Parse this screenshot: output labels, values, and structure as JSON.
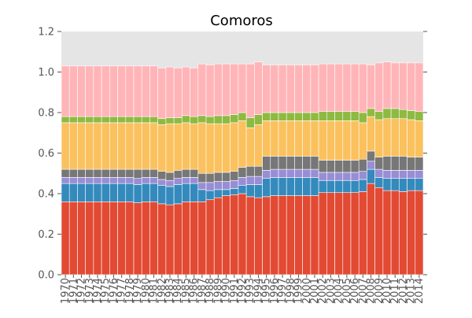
{
  "chart_data": {
    "type": "bar",
    "stacked": true,
    "title": "Comoros",
    "xlabel": "",
    "ylabel": "",
    "ylim": [
      0,
      1.2
    ],
    "yticks": [
      "0.0",
      "0.2",
      "0.4",
      "0.6",
      "0.8",
      "1.0",
      "1.2"
    ],
    "grid": false,
    "legend": "none",
    "categories": [
      "1970",
      "1971",
      "1972",
      "1973",
      "1974",
      "1975",
      "1976",
      "1977",
      "1978",
      "1979",
      "1980",
      "1981",
      "1982",
      "1983",
      "1984",
      "1985",
      "1986",
      "1987",
      "1988",
      "1989",
      "1990",
      "1991",
      "1992",
      "1993",
      "1994",
      "1995",
      "1996",
      "1997",
      "1998",
      "1999",
      "2000",
      "2001",
      "2002",
      "2003",
      "2004",
      "2005",
      "2006",
      "2007",
      "2008",
      "2009",
      "2010",
      "2011",
      "2012",
      "2013",
      "2014"
    ],
    "series": [
      {
        "color": "#E24A33",
        "values": [
          0.36,
          0.36,
          0.36,
          0.36,
          0.36,
          0.36,
          0.36,
          0.36,
          0.36,
          0.355,
          0.36,
          0.36,
          0.35,
          0.345,
          0.35,
          0.36,
          0.36,
          0.36,
          0.37,
          0.38,
          0.39,
          0.395,
          0.4,
          0.385,
          0.38,
          0.385,
          0.39,
          0.39,
          0.39,
          0.39,
          0.39,
          0.39,
          0.405,
          0.405,
          0.405,
          0.405,
          0.405,
          0.41,
          0.45,
          0.43,
          0.415,
          0.415,
          0.41,
          0.415,
          0.415
        ]
      },
      {
        "color": "#348ABD",
        "values": [
          0.09,
          0.09,
          0.09,
          0.09,
          0.09,
          0.09,
          0.09,
          0.09,
          0.09,
          0.09,
          0.09,
          0.09,
          0.09,
          0.09,
          0.095,
          0.09,
          0.09,
          0.06,
          0.045,
          0.04,
          0.03,
          0.03,
          0.04,
          0.06,
          0.065,
          0.09,
          0.09,
          0.09,
          0.09,
          0.09,
          0.09,
          0.09,
          0.06,
          0.06,
          0.06,
          0.06,
          0.06,
          0.06,
          0.07,
          0.05,
          0.06,
          0.06,
          0.065,
          0.06,
          0.06
        ]
      },
      {
        "color": "#988ED5",
        "values": [
          0.03,
          0.03,
          0.03,
          0.03,
          0.03,
          0.03,
          0.03,
          0.03,
          0.03,
          0.03,
          0.03,
          0.03,
          0.03,
          0.03,
          0.03,
          0.03,
          0.03,
          0.035,
          0.04,
          0.04,
          0.04,
          0.04,
          0.04,
          0.04,
          0.04,
          0.04,
          0.04,
          0.04,
          0.04,
          0.04,
          0.04,
          0.04,
          0.04,
          0.04,
          0.04,
          0.04,
          0.04,
          0.04,
          0.04,
          0.04,
          0.04,
          0.04,
          0.04,
          0.04,
          0.04
        ]
      },
      {
        "color": "#777777",
        "values": [
          0.04,
          0.04,
          0.04,
          0.04,
          0.04,
          0.04,
          0.04,
          0.04,
          0.04,
          0.045,
          0.04,
          0.04,
          0.04,
          0.04,
          0.04,
          0.04,
          0.04,
          0.045,
          0.045,
          0.045,
          0.045,
          0.045,
          0.05,
          0.05,
          0.05,
          0.07,
          0.065,
          0.065,
          0.065,
          0.065,
          0.065,
          0.065,
          0.06,
          0.06,
          0.06,
          0.06,
          0.06,
          0.06,
          0.05,
          0.06,
          0.07,
          0.07,
          0.07,
          0.065,
          0.065
        ]
      },
      {
        "color": "#FBC15E",
        "values": [
          0.23,
          0.23,
          0.23,
          0.23,
          0.23,
          0.23,
          0.23,
          0.23,
          0.23,
          0.23,
          0.23,
          0.23,
          0.23,
          0.24,
          0.23,
          0.23,
          0.225,
          0.25,
          0.245,
          0.24,
          0.24,
          0.24,
          0.23,
          0.19,
          0.205,
          0.175,
          0.175,
          0.175,
          0.175,
          0.175,
          0.175,
          0.175,
          0.195,
          0.195,
          0.195,
          0.195,
          0.195,
          0.18,
          0.17,
          0.185,
          0.185,
          0.185,
          0.185,
          0.185,
          0.18
        ]
      },
      {
        "color": "#8EBA42",
        "values": [
          0.03,
          0.03,
          0.03,
          0.03,
          0.03,
          0.03,
          0.03,
          0.03,
          0.03,
          0.03,
          0.03,
          0.03,
          0.03,
          0.03,
          0.03,
          0.035,
          0.035,
          0.035,
          0.035,
          0.04,
          0.04,
          0.04,
          0.04,
          0.05,
          0.05,
          0.04,
          0.04,
          0.04,
          0.04,
          0.04,
          0.04,
          0.04,
          0.045,
          0.045,
          0.045,
          0.045,
          0.045,
          0.05,
          0.04,
          0.04,
          0.05,
          0.05,
          0.045,
          0.045,
          0.045
        ]
      },
      {
        "color": "#FFB5B8",
        "values": [
          0.25,
          0.25,
          0.25,
          0.25,
          0.25,
          0.25,
          0.25,
          0.25,
          0.25,
          0.25,
          0.25,
          0.25,
          0.25,
          0.25,
          0.245,
          0.24,
          0.24,
          0.255,
          0.255,
          0.255,
          0.255,
          0.25,
          0.24,
          0.265,
          0.26,
          0.235,
          0.235,
          0.235,
          0.235,
          0.235,
          0.235,
          0.235,
          0.235,
          0.235,
          0.235,
          0.235,
          0.235,
          0.24,
          0.215,
          0.24,
          0.23,
          0.225,
          0.23,
          0.235,
          0.24
        ]
      }
    ]
  }
}
